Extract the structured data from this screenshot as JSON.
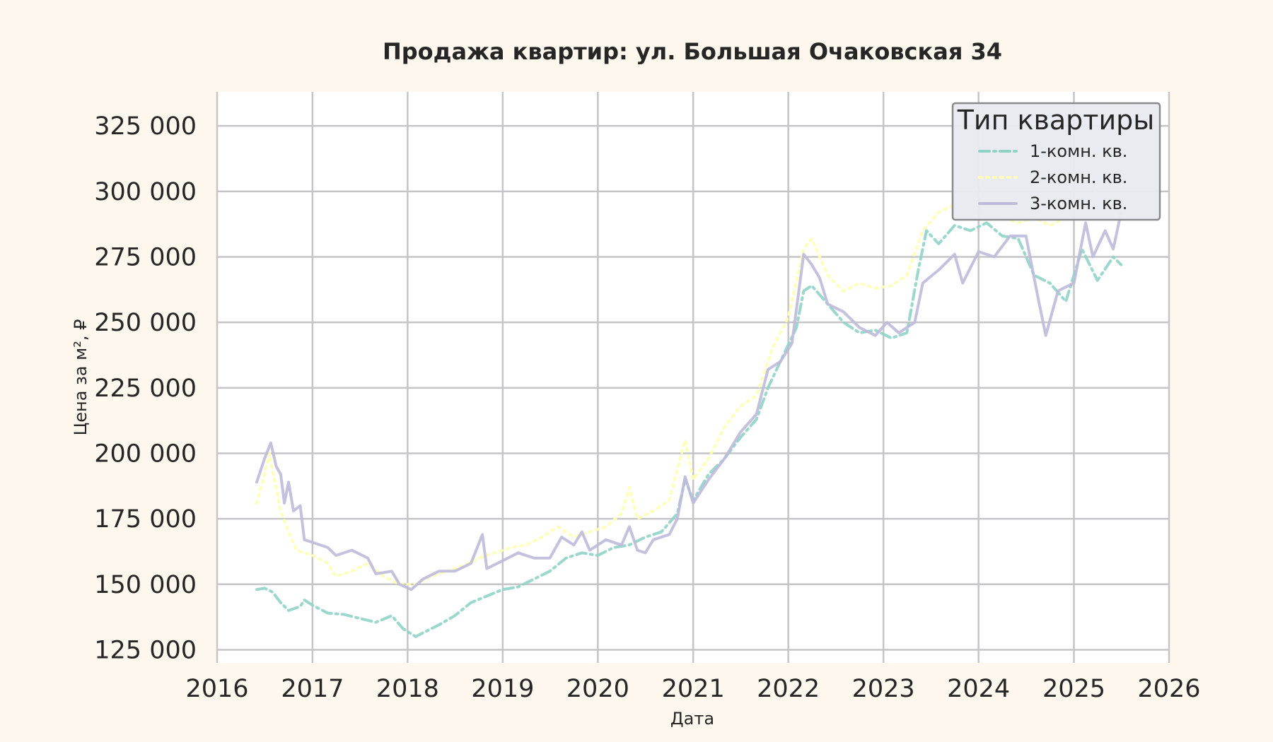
{
  "chart_data": {
    "type": "line",
    "title": "Продажа квартир: ул. Большая Очаковская 34",
    "xlabel": "Дата",
    "ylabel": "Цена за м², ₽",
    "xlim": [
      "2016-01-01",
      "2026-01-01"
    ],
    "ylim": [
      120000,
      338000
    ],
    "x_ticks": [
      "2016",
      "2017",
      "2018",
      "2019",
      "2020",
      "2021",
      "2022",
      "2023",
      "2024",
      "2025",
      "2026"
    ],
    "y_ticks": [
      125000,
      150000,
      175000,
      200000,
      225000,
      250000,
      275000,
      300000,
      325000
    ],
    "y_tick_labels": [
      "125 000",
      "150 000",
      "175 000",
      "200 000",
      "225 000",
      "250 000",
      "275 000",
      "300 000",
      "325 000"
    ],
    "grid": true,
    "legend": {
      "title": "Тип квартиры",
      "position": "top-right"
    },
    "series": [
      {
        "name": "1-комн. кв.",
        "color": "#8fd3c7",
        "style": "dashdot",
        "points": [
          [
            "2016-06-01",
            148000
          ],
          [
            "2016-07-01",
            148500
          ],
          [
            "2016-08-01",
            147000
          ],
          [
            "2016-09-01",
            143000
          ],
          [
            "2016-10-01",
            140000
          ],
          [
            "2016-11-15",
            141500
          ],
          [
            "2016-12-01",
            144000
          ],
          [
            "2017-01-01",
            142000
          ],
          [
            "2017-03-01",
            139000
          ],
          [
            "2017-05-01",
            138500
          ],
          [
            "2017-07-01",
            137000
          ],
          [
            "2017-09-01",
            135500
          ],
          [
            "2017-11-01",
            138000
          ],
          [
            "2017-12-15",
            133000
          ],
          [
            "2018-02-01",
            130000
          ],
          [
            "2018-03-01",
            131500
          ],
          [
            "2018-05-01",
            134500
          ],
          [
            "2018-07-01",
            138000
          ],
          [
            "2018-09-01",
            143000
          ],
          [
            "2018-11-01",
            145500
          ],
          [
            "2019-01-01",
            148000
          ],
          [
            "2019-03-01",
            149000
          ],
          [
            "2019-05-01",
            152000
          ],
          [
            "2019-07-01",
            155000
          ],
          [
            "2019-09-01",
            160000
          ],
          [
            "2019-11-01",
            162000
          ],
          [
            "2020-01-01",
            161000
          ],
          [
            "2020-03-01",
            164000
          ],
          [
            "2020-05-01",
            165000
          ],
          [
            "2020-07-01",
            168000
          ],
          [
            "2020-09-01",
            170000
          ],
          [
            "2020-11-01",
            177000
          ],
          [
            "2020-12-01",
            190000
          ],
          [
            "2021-01-01",
            182000
          ],
          [
            "2021-03-01",
            192000
          ],
          [
            "2021-05-01",
            198000
          ],
          [
            "2021-07-01",
            206000
          ],
          [
            "2021-09-01",
            213000
          ],
          [
            "2021-10-15",
            225000
          ],
          [
            "2021-12-01",
            235000
          ],
          [
            "2022-02-01",
            248000
          ],
          [
            "2022-03-01",
            262000
          ],
          [
            "2022-04-01",
            264000
          ],
          [
            "2022-06-01",
            257000
          ],
          [
            "2022-08-01",
            250000
          ],
          [
            "2022-10-01",
            246000
          ],
          [
            "2022-12-01",
            247000
          ],
          [
            "2023-02-01",
            244000
          ],
          [
            "2023-04-01",
            246000
          ],
          [
            "2023-05-15",
            270000
          ],
          [
            "2023-06-15",
            285000
          ],
          [
            "2023-08-01",
            280000
          ],
          [
            "2023-10-01",
            287000
          ],
          [
            "2023-12-01",
            285000
          ],
          [
            "2024-02-01",
            288000
          ],
          [
            "2024-04-01",
            283000
          ],
          [
            "2024-06-01",
            282000
          ],
          [
            "2024-08-01",
            268000
          ],
          [
            "2024-10-01",
            265000
          ],
          [
            "2024-12-01",
            258000
          ],
          [
            "2025-02-01",
            278000
          ],
          [
            "2025-04-01",
            266000
          ],
          [
            "2025-06-01",
            275000
          ],
          [
            "2025-07-01",
            272000
          ]
        ]
      },
      {
        "name": "2-комн. кв.",
        "color": "#ffffb3",
        "style": "dotted",
        "points": [
          [
            "2016-06-01",
            181000
          ],
          [
            "2016-07-01",
            192000
          ],
          [
            "2016-07-20",
            200000
          ],
          [
            "2016-08-01",
            193000
          ],
          [
            "2016-09-01",
            178000
          ],
          [
            "2016-10-01",
            170000
          ],
          [
            "2016-11-01",
            163000
          ],
          [
            "2017-01-01",
            161000
          ],
          [
            "2017-03-01",
            158000
          ],
          [
            "2017-04-01",
            153000
          ],
          [
            "2017-06-01",
            155000
          ],
          [
            "2017-08-01",
            158000
          ],
          [
            "2017-10-01",
            153000
          ],
          [
            "2017-12-01",
            150000
          ],
          [
            "2018-02-01",
            150000
          ],
          [
            "2018-04-01",
            153000
          ],
          [
            "2018-06-01",
            155000
          ],
          [
            "2018-08-01",
            157000
          ],
          [
            "2018-10-01",
            160000
          ],
          [
            "2018-12-01",
            162000
          ],
          [
            "2019-02-01",
            164000
          ],
          [
            "2019-04-01",
            165000
          ],
          [
            "2019-06-01",
            168000
          ],
          [
            "2019-08-01",
            172000
          ],
          [
            "2019-10-01",
            168000
          ],
          [
            "2019-12-01",
            170000
          ],
          [
            "2020-02-01",
            172000
          ],
          [
            "2020-04-01",
            177000
          ],
          [
            "2020-05-01",
            187000
          ],
          [
            "2020-06-01",
            175000
          ],
          [
            "2020-08-01",
            178000
          ],
          [
            "2020-10-01",
            182000
          ],
          [
            "2020-12-01",
            205000
          ],
          [
            "2021-01-01",
            190000
          ],
          [
            "2021-03-01",
            198000
          ],
          [
            "2021-05-01",
            210000
          ],
          [
            "2021-07-01",
            218000
          ],
          [
            "2021-09-01",
            222000
          ],
          [
            "2021-11-01",
            240000
          ],
          [
            "2022-01-01",
            252000
          ],
          [
            "2022-03-01",
            278000
          ],
          [
            "2022-04-01",
            282000
          ],
          [
            "2022-06-01",
            268000
          ],
          [
            "2022-08-01",
            262000
          ],
          [
            "2022-10-01",
            265000
          ],
          [
            "2022-12-01",
            263000
          ],
          [
            "2023-02-01",
            264000
          ],
          [
            "2023-04-01",
            268000
          ],
          [
            "2023-06-01",
            285000
          ],
          [
            "2023-08-01",
            292000
          ],
          [
            "2023-10-01",
            295000
          ],
          [
            "2023-12-01",
            293000
          ],
          [
            "2024-02-01",
            292000
          ],
          [
            "2024-04-01",
            290000
          ],
          [
            "2024-06-01",
            288000
          ],
          [
            "2024-08-01",
            290000
          ],
          [
            "2024-10-01",
            287000
          ],
          [
            "2024-12-01",
            290000
          ],
          [
            "2025-02-01",
            298000
          ],
          [
            "2025-04-01",
            300000
          ],
          [
            "2025-06-01",
            318000
          ],
          [
            "2025-07-01",
            333000
          ]
        ]
      },
      {
        "name": "3-комн. кв.",
        "color": "#bebada",
        "style": "solid",
        "points": [
          [
            "2016-06-01",
            189000
          ],
          [
            "2016-07-01",
            198000
          ],
          [
            "2016-07-25",
            204000
          ],
          [
            "2016-08-15",
            195000
          ],
          [
            "2016-09-01",
            192000
          ],
          [
            "2016-09-15",
            181000
          ],
          [
            "2016-10-01",
            189000
          ],
          [
            "2016-10-20",
            178000
          ],
          [
            "2016-11-15",
            180000
          ],
          [
            "2016-12-01",
            167000
          ],
          [
            "2017-01-01",
            166000
          ],
          [
            "2017-03-01",
            164000
          ],
          [
            "2017-04-01",
            161000
          ],
          [
            "2017-06-01",
            163000
          ],
          [
            "2017-08-01",
            160000
          ],
          [
            "2017-09-01",
            154000
          ],
          [
            "2017-11-01",
            155000
          ],
          [
            "2017-12-01",
            150000
          ],
          [
            "2018-01-15",
            148000
          ],
          [
            "2018-03-01",
            152000
          ],
          [
            "2018-05-01",
            155000
          ],
          [
            "2018-07-01",
            155000
          ],
          [
            "2018-09-01",
            158000
          ],
          [
            "2018-10-15",
            169000
          ],
          [
            "2018-11-01",
            156000
          ],
          [
            "2019-01-01",
            159000
          ],
          [
            "2019-03-01",
            162000
          ],
          [
            "2019-05-01",
            160000
          ],
          [
            "2019-07-01",
            160000
          ],
          [
            "2019-08-15",
            168000
          ],
          [
            "2019-10-01",
            165000
          ],
          [
            "2019-11-01",
            170000
          ],
          [
            "2019-12-01",
            163000
          ],
          [
            "2020-02-01",
            167000
          ],
          [
            "2020-04-01",
            165000
          ],
          [
            "2020-05-01",
            172000
          ],
          [
            "2020-06-01",
            163000
          ],
          [
            "2020-07-01",
            162000
          ],
          [
            "2020-08-01",
            167000
          ],
          [
            "2020-10-01",
            169000
          ],
          [
            "2020-11-01",
            175000
          ],
          [
            "2020-12-01",
            191000
          ],
          [
            "2021-01-01",
            181000
          ],
          [
            "2021-03-01",
            190000
          ],
          [
            "2021-05-01",
            198000
          ],
          [
            "2021-07-01",
            208000
          ],
          [
            "2021-09-01",
            215000
          ],
          [
            "2021-10-15",
            232000
          ],
          [
            "2021-12-01",
            235000
          ],
          [
            "2022-01-15",
            242000
          ],
          [
            "2022-03-01",
            276000
          ],
          [
            "2022-04-01",
            272000
          ],
          [
            "2022-05-01",
            267000
          ],
          [
            "2022-06-01",
            257000
          ],
          [
            "2022-08-01",
            254000
          ],
          [
            "2022-10-01",
            248000
          ],
          [
            "2022-12-01",
            245000
          ],
          [
            "2023-01-15",
            250000
          ],
          [
            "2023-03-01",
            246000
          ],
          [
            "2023-05-01",
            250000
          ],
          [
            "2023-06-01",
            265000
          ],
          [
            "2023-08-01",
            270000
          ],
          [
            "2023-10-01",
            276000
          ],
          [
            "2023-11-01",
            265000
          ],
          [
            "2024-01-01",
            277000
          ],
          [
            "2024-03-01",
            275000
          ],
          [
            "2024-05-01",
            283000
          ],
          [
            "2024-07-01",
            283000
          ],
          [
            "2024-08-15",
            260000
          ],
          [
            "2024-09-15",
            245000
          ],
          [
            "2024-11-01",
            262000
          ],
          [
            "2025-01-01",
            265000
          ],
          [
            "2025-02-15",
            288000
          ],
          [
            "2025-03-15",
            275000
          ],
          [
            "2025-05-01",
            285000
          ],
          [
            "2025-06-01",
            278000
          ],
          [
            "2025-07-01",
            292000
          ]
        ]
      }
    ]
  }
}
